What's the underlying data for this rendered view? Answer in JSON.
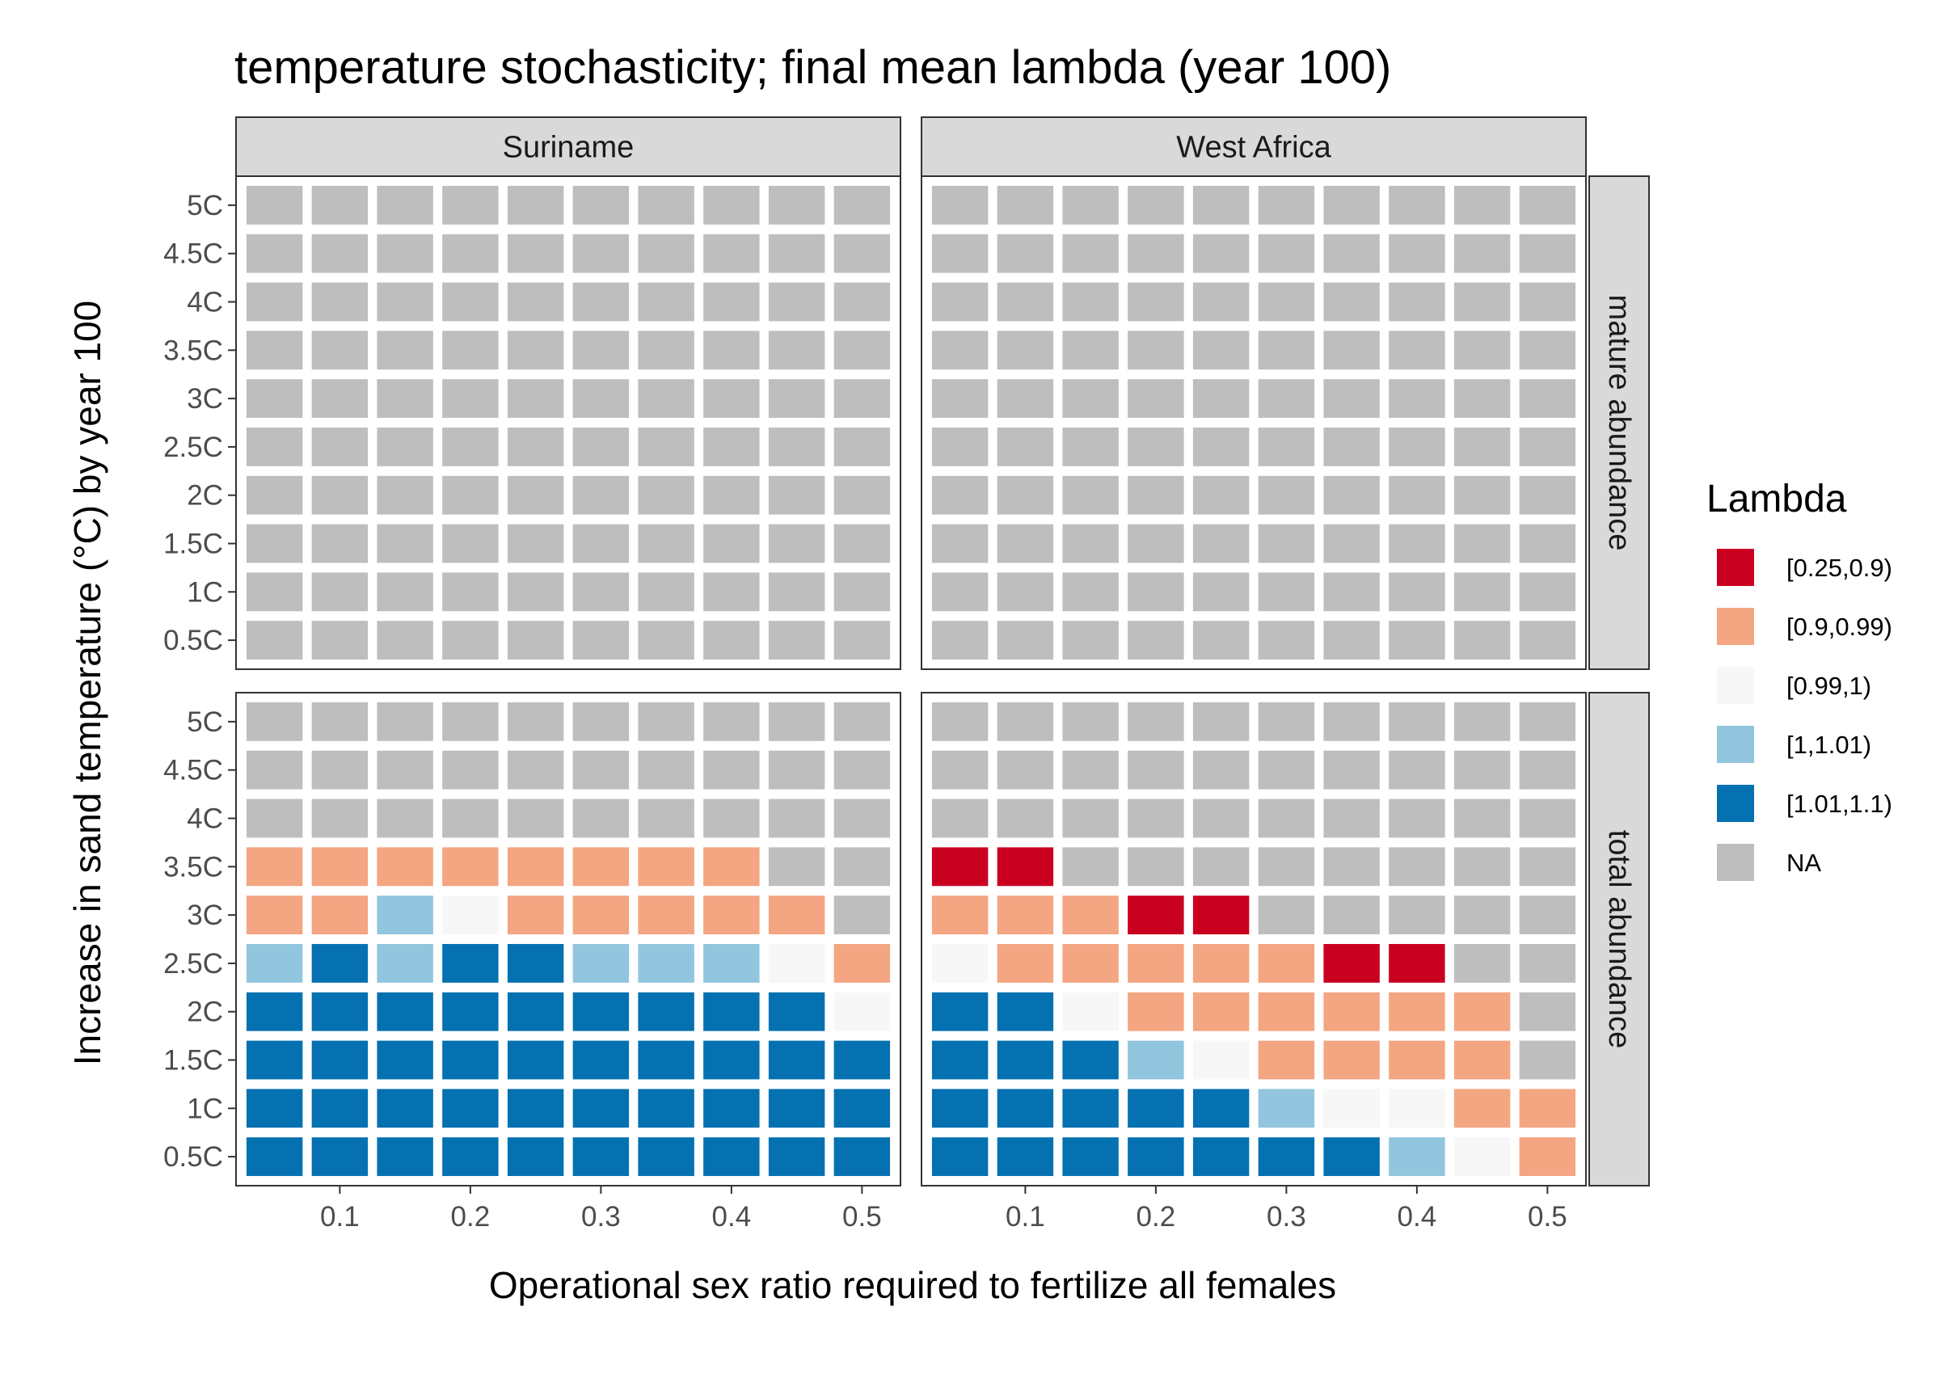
{
  "chart_data": {
    "type": "heatmap",
    "title": "temperature stochasticity; final mean lambda (year 100)",
    "xlabel": "Operational sex ratio required to fertilize all females",
    "ylabel": "Increase in sand temperature (°C) by year 100",
    "x_values": [
      0.05,
      0.1,
      0.15,
      0.2,
      0.25,
      0.3,
      0.35,
      0.4,
      0.45,
      0.5
    ],
    "x_ticks": [
      0.1,
      0.2,
      0.3,
      0.4,
      0.5
    ],
    "x_tick_labels": [
      "0.1",
      "0.2",
      "0.3",
      "0.4",
      "0.5"
    ],
    "y_tick_labels": [
      "0.5C",
      "1C",
      "1.5C",
      "2C",
      "2.5C",
      "3C",
      "3.5C",
      "4C",
      "4.5C",
      "5C"
    ],
    "col_facets": [
      "Suriname",
      "West Africa"
    ],
    "row_facets": [
      "mature abundance",
      "total abundance"
    ],
    "legend": {
      "title": "Lambda",
      "position": "right",
      "categories": [
        {
          "label": "[0.25,0.9)",
          "color": "#ca0020"
        },
        {
          "label": "[0.9,0.99)",
          "color": "#f4a582"
        },
        {
          "label": "[0.99,1)",
          "color": "#f7f7f7"
        },
        {
          "label": "[1,1.01)",
          "color": "#92c5de"
        },
        {
          "label": "[1.01,1.1)",
          "color": "#0571b0"
        },
        {
          "label": "NA",
          "color": "#bebebe"
        }
      ]
    },
    "grid": false,
    "panels": [
      {
        "row": "mature abundance",
        "col": "Suriname",
        "cells": [
          [
            "NA",
            "NA",
            "NA",
            "NA",
            "NA",
            "NA",
            "NA",
            "NA",
            "NA",
            "NA"
          ],
          [
            "NA",
            "NA",
            "NA",
            "NA",
            "NA",
            "NA",
            "NA",
            "NA",
            "NA",
            "NA"
          ],
          [
            "NA",
            "NA",
            "NA",
            "NA",
            "NA",
            "NA",
            "NA",
            "NA",
            "NA",
            "NA"
          ],
          [
            "NA",
            "NA",
            "NA",
            "NA",
            "NA",
            "NA",
            "NA",
            "NA",
            "NA",
            "NA"
          ],
          [
            "NA",
            "NA",
            "NA",
            "NA",
            "NA",
            "NA",
            "NA",
            "NA",
            "NA",
            "NA"
          ],
          [
            "NA",
            "NA",
            "NA",
            "NA",
            "NA",
            "NA",
            "NA",
            "NA",
            "NA",
            "NA"
          ],
          [
            "NA",
            "NA",
            "NA",
            "NA",
            "NA",
            "NA",
            "NA",
            "NA",
            "NA",
            "NA"
          ],
          [
            "NA",
            "NA",
            "NA",
            "NA",
            "NA",
            "NA",
            "NA",
            "NA",
            "NA",
            "NA"
          ],
          [
            "NA",
            "NA",
            "NA",
            "NA",
            "NA",
            "NA",
            "NA",
            "NA",
            "NA",
            "NA"
          ],
          [
            "NA",
            "NA",
            "NA",
            "NA",
            "NA",
            "NA",
            "NA",
            "NA",
            "NA",
            "NA"
          ]
        ]
      },
      {
        "row": "mature abundance",
        "col": "West Africa",
        "cells": [
          [
            "NA",
            "NA",
            "NA",
            "NA",
            "NA",
            "NA",
            "NA",
            "NA",
            "NA",
            "NA"
          ],
          [
            "NA",
            "NA",
            "NA",
            "NA",
            "NA",
            "NA",
            "NA",
            "NA",
            "NA",
            "NA"
          ],
          [
            "NA",
            "NA",
            "NA",
            "NA",
            "NA",
            "NA",
            "NA",
            "NA",
            "NA",
            "NA"
          ],
          [
            "NA",
            "NA",
            "NA",
            "NA",
            "NA",
            "NA",
            "NA",
            "NA",
            "NA",
            "NA"
          ],
          [
            "NA",
            "NA",
            "NA",
            "NA",
            "NA",
            "NA",
            "NA",
            "NA",
            "NA",
            "NA"
          ],
          [
            "NA",
            "NA",
            "NA",
            "NA",
            "NA",
            "NA",
            "NA",
            "NA",
            "NA",
            "NA"
          ],
          [
            "NA",
            "NA",
            "NA",
            "NA",
            "NA",
            "NA",
            "NA",
            "NA",
            "NA",
            "NA"
          ],
          [
            "NA",
            "NA",
            "NA",
            "NA",
            "NA",
            "NA",
            "NA",
            "NA",
            "NA",
            "NA"
          ],
          [
            "NA",
            "NA",
            "NA",
            "NA",
            "NA",
            "NA",
            "NA",
            "NA",
            "NA",
            "NA"
          ],
          [
            "NA",
            "NA",
            "NA",
            "NA",
            "NA",
            "NA",
            "NA",
            "NA",
            "NA",
            "NA"
          ]
        ]
      },
      {
        "row": "total abundance",
        "col": "Suriname",
        "cells": [
          [
            "[1.01,1.1)",
            "[1.01,1.1)",
            "[1.01,1.1)",
            "[1.01,1.1)",
            "[1.01,1.1)",
            "[1.01,1.1)",
            "[1.01,1.1)",
            "[1.01,1.1)",
            "[1.01,1.1)",
            "[1.01,1.1)"
          ],
          [
            "[1.01,1.1)",
            "[1.01,1.1)",
            "[1.01,1.1)",
            "[1.01,1.1)",
            "[1.01,1.1)",
            "[1.01,1.1)",
            "[1.01,1.1)",
            "[1.01,1.1)",
            "[1.01,1.1)",
            "[1.01,1.1)"
          ],
          [
            "[1.01,1.1)",
            "[1.01,1.1)",
            "[1.01,1.1)",
            "[1.01,1.1)",
            "[1.01,1.1)",
            "[1.01,1.1)",
            "[1.01,1.1)",
            "[1.01,1.1)",
            "[1.01,1.1)",
            "[1.01,1.1)"
          ],
          [
            "[1.01,1.1)",
            "[1.01,1.1)",
            "[1.01,1.1)",
            "[1.01,1.1)",
            "[1.01,1.1)",
            "[1.01,1.1)",
            "[1.01,1.1)",
            "[1.01,1.1)",
            "[1.01,1.1)",
            "[0.99,1)"
          ],
          [
            "[1,1.01)",
            "[1.01,1.1)",
            "[1,1.01)",
            "[1.01,1.1)",
            "[1.01,1.1)",
            "[1,1.01)",
            "[1,1.01)",
            "[1,1.01)",
            "[0.99,1)",
            "[0.9,0.99)"
          ],
          [
            "[0.9,0.99)",
            "[0.9,0.99)",
            "[1,1.01)",
            "[0.99,1)",
            "[0.9,0.99)",
            "[0.9,0.99)",
            "[0.9,0.99)",
            "[0.9,0.99)",
            "[0.9,0.99)",
            "NA"
          ],
          [
            "[0.9,0.99)",
            "[0.9,0.99)",
            "[0.9,0.99)",
            "[0.9,0.99)",
            "[0.9,0.99)",
            "[0.9,0.99)",
            "[0.9,0.99)",
            "[0.9,0.99)",
            "NA",
            "NA"
          ],
          [
            "NA",
            "NA",
            "NA",
            "NA",
            "NA",
            "NA",
            "NA",
            "NA",
            "NA",
            "NA"
          ],
          [
            "NA",
            "NA",
            "NA",
            "NA",
            "NA",
            "NA",
            "NA",
            "NA",
            "NA",
            "NA"
          ],
          [
            "NA",
            "NA",
            "NA",
            "NA",
            "NA",
            "NA",
            "NA",
            "NA",
            "NA",
            "NA"
          ]
        ]
      },
      {
        "row": "total abundance",
        "col": "West Africa",
        "cells": [
          [
            "[1.01,1.1)",
            "[1.01,1.1)",
            "[1.01,1.1)",
            "[1.01,1.1)",
            "[1.01,1.1)",
            "[1.01,1.1)",
            "[1.01,1.1)",
            "[1,1.01)",
            "[0.99,1)",
            "[0.9,0.99)"
          ],
          [
            "[1.01,1.1)",
            "[1.01,1.1)",
            "[1.01,1.1)",
            "[1.01,1.1)",
            "[1.01,1.1)",
            "[1,1.01)",
            "[0.99,1)",
            "[0.99,1)",
            "[0.9,0.99)",
            "[0.9,0.99)"
          ],
          [
            "[1.01,1.1)",
            "[1.01,1.1)",
            "[1.01,1.1)",
            "[1,1.01)",
            "[0.99,1)",
            "[0.9,0.99)",
            "[0.9,0.99)",
            "[0.9,0.99)",
            "[0.9,0.99)",
            "NA"
          ],
          [
            "[1.01,1.1)",
            "[1.01,1.1)",
            "[0.99,1)",
            "[0.9,0.99)",
            "[0.9,0.99)",
            "[0.9,0.99)",
            "[0.9,0.99)",
            "[0.9,0.99)",
            "[0.9,0.99)",
            "NA"
          ],
          [
            "[0.99,1)",
            "[0.9,0.99)",
            "[0.9,0.99)",
            "[0.9,0.99)",
            "[0.9,0.99)",
            "[0.9,0.99)",
            "[0.25,0.9)",
            "[0.25,0.9)",
            "NA",
            "NA"
          ],
          [
            "[0.9,0.99)",
            "[0.9,0.99)",
            "[0.9,0.99)",
            "[0.25,0.9)",
            "[0.25,0.9)",
            "NA",
            "NA",
            "NA",
            "NA",
            "NA"
          ],
          [
            "[0.25,0.9)",
            "[0.25,0.9)",
            "NA",
            "NA",
            "NA",
            "NA",
            "NA",
            "NA",
            "NA",
            "NA"
          ],
          [
            "NA",
            "NA",
            "NA",
            "NA",
            "NA",
            "NA",
            "NA",
            "NA",
            "NA",
            "NA"
          ],
          [
            "NA",
            "NA",
            "NA",
            "NA",
            "NA",
            "NA",
            "NA",
            "NA",
            "NA",
            "NA"
          ],
          [
            "NA",
            "NA",
            "NA",
            "NA",
            "NA",
            "NA",
            "NA",
            "NA",
            "NA",
            "NA"
          ]
        ]
      }
    ]
  }
}
